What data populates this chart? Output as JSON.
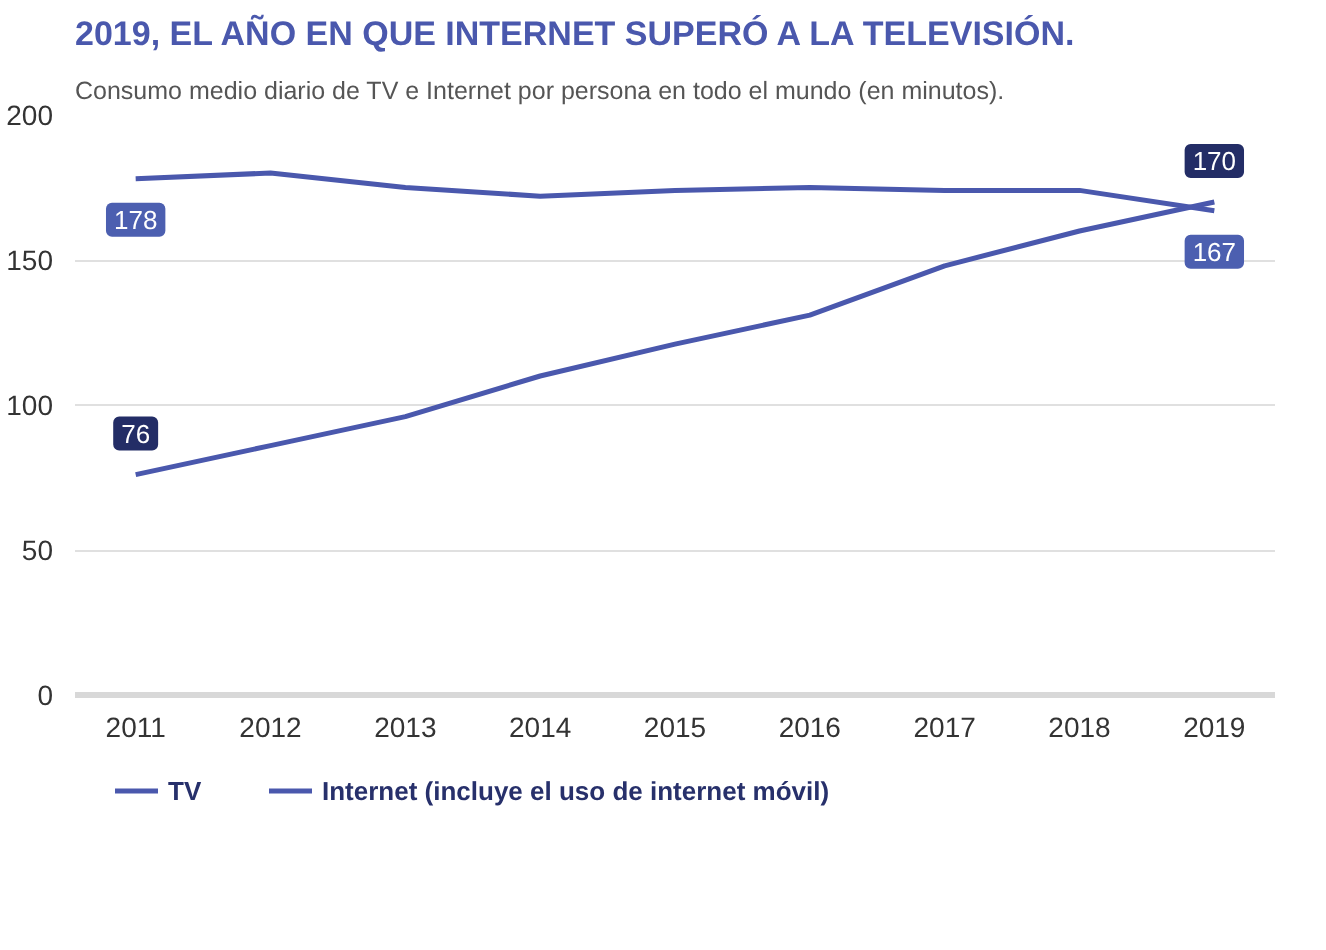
{
  "chart_data": {
    "type": "line",
    "title": "2019, EL AÑO EN QUE INTERNET SUPERÓ A LA TELEVISIÓN.",
    "subtitle": "Consumo medio diario de TV  e Internet por persona en todo el mundo (en minutos).",
    "categories": [
      "2011",
      "2012",
      "2013",
      "2014",
      "2015",
      "2016",
      "2017",
      "2018",
      "2019"
    ],
    "series": [
      {
        "name": "TV",
        "color": "#4a58ad",
        "values": [
          178,
          180,
          175,
          172,
          174,
          175,
          174,
          174,
          167
        ],
        "value_labels": [
          "178",
          null,
          null,
          null,
          null,
          null,
          null,
          null,
          "167"
        ]
      },
      {
        "name": "Internet (incluye el uso de internet móvil)",
        "color": "#4a58ad",
        "values": [
          76,
          86,
          96,
          110,
          121,
          131,
          148,
          160,
          170
        ],
        "value_labels": [
          "76",
          null,
          null,
          null,
          null,
          null,
          null,
          null,
          "170"
        ]
      }
    ],
    "ylim": [
      0,
      200
    ],
    "yticks": [
      0,
      50,
      100,
      150,
      200
    ],
    "grid": "y",
    "legend": "bottom",
    "marker": "none",
    "line_style": "solid"
  }
}
